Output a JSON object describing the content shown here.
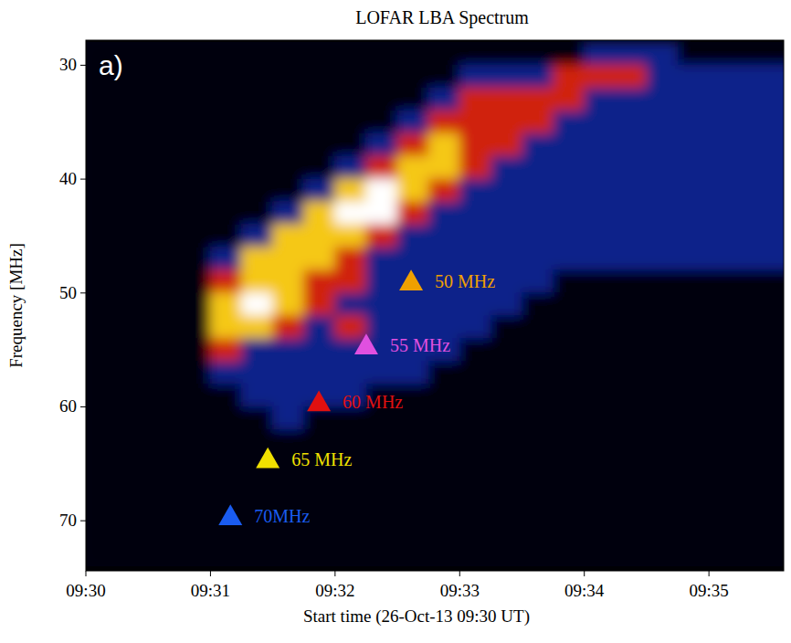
{
  "chart_data": {
    "type": "heatmap",
    "title": "LOFAR LBA Spectrum",
    "panel": "a)",
    "x_label": "Start time (26-Oct-13 09:30 UT)",
    "y_label": "Frequency [MHz]",
    "xlim": [
      0,
      5.6
    ],
    "xticks": [
      {
        "value": 0,
        "label": "09:30"
      },
      {
        "value": 1,
        "label": "09:31"
      },
      {
        "value": 2,
        "label": "09:32"
      },
      {
        "value": 3,
        "label": "09:33"
      },
      {
        "value": 4,
        "label": "09:34"
      },
      {
        "value": 5,
        "label": "09:35"
      }
    ],
    "ylim": [
      74.4,
      27.8
    ],
    "yticks": [
      30,
      40,
      50,
      60,
      70
    ],
    "x_bins": [
      0,
      0.25,
      0.5,
      0.75,
      1,
      1.25,
      1.5,
      1.75,
      2,
      2.25,
      2.5,
      2.75,
      3,
      3.25,
      3.5,
      3.75,
      4,
      4.25,
      4.5,
      4.75,
      5,
      5.25,
      5.5,
      5.75
    ],
    "y_bins": [
      28,
      30,
      32,
      34,
      36,
      38,
      40,
      42,
      44,
      46,
      48,
      50,
      52,
      54,
      56,
      58,
      60,
      62,
      64,
      66,
      68,
      70,
      72,
      74
    ],
    "levels": [
      0,
      1,
      2,
      3,
      4
    ],
    "colors": [
      "#000008",
      "#10208a",
      "#d02010",
      "#f5c818",
      "#ffffff"
    ],
    "cells": [
      [
        0,
        0,
        0,
        0,
        0,
        0,
        0,
        0,
        0,
        0,
        0,
        0,
        0,
        0,
        0,
        0,
        1,
        1,
        1,
        0,
        0,
        0,
        0
      ],
      [
        0,
        0,
        0,
        0,
        0,
        0,
        0,
        0,
        0,
        0,
        0,
        0,
        1,
        1,
        1,
        2,
        2,
        2,
        1,
        1,
        1,
        1,
        1
      ],
      [
        0,
        0,
        0,
        0,
        0,
        0,
        0,
        0,
        0,
        0,
        0,
        1,
        2,
        2,
        2,
        2,
        1,
        1,
        1,
        1,
        1,
        1,
        1
      ],
      [
        0,
        0,
        0,
        0,
        0,
        0,
        0,
        0,
        0,
        0,
        1,
        2,
        2,
        2,
        2,
        1,
        1,
        1,
        1,
        1,
        1,
        1,
        1
      ],
      [
        0,
        0,
        0,
        0,
        0,
        0,
        0,
        0,
        0,
        1,
        2,
        3,
        2,
        2,
        1,
        1,
        1,
        1,
        1,
        1,
        1,
        1,
        1
      ],
      [
        0,
        0,
        0,
        0,
        0,
        0,
        0,
        0,
        1,
        2,
        3,
        3,
        2,
        1,
        1,
        1,
        1,
        1,
        1,
        1,
        1,
        1,
        1
      ],
      [
        0,
        0,
        0,
        0,
        0,
        0,
        0,
        1,
        3,
        4,
        3,
        2,
        1,
        1,
        1,
        1,
        1,
        1,
        1,
        1,
        1,
        1,
        1
      ],
      [
        0,
        0,
        0,
        0,
        0,
        0,
        1,
        3,
        4,
        4,
        2,
        1,
        1,
        1,
        1,
        1,
        1,
        1,
        1,
        1,
        1,
        1,
        1
      ],
      [
        0,
        0,
        0,
        0,
        0,
        1,
        3,
        3,
        3,
        2,
        1,
        1,
        1,
        1,
        1,
        1,
        1,
        1,
        1,
        1,
        1,
        1,
        1
      ],
      [
        0,
        0,
        0,
        0,
        1,
        3,
        3,
        3,
        2,
        1,
        1,
        1,
        1,
        1,
        1,
        1,
        1,
        1,
        1,
        1,
        1,
        1,
        1
      ],
      [
        0,
        0,
        0,
        0,
        2,
        3,
        3,
        2,
        2,
        1,
        1,
        1,
        1,
        1,
        1,
        0,
        0,
        0,
        0,
        0,
        0,
        0,
        0
      ],
      [
        0,
        0,
        0,
        0,
        3,
        4,
        3,
        2,
        1,
        1,
        1,
        1,
        1,
        1,
        0,
        0,
        0,
        0,
        0,
        0,
        0,
        0,
        0
      ],
      [
        0,
        0,
        0,
        0,
        3,
        3,
        2,
        1,
        2,
        1,
        1,
        1,
        1,
        0,
        0,
        0,
        0,
        0,
        0,
        0,
        0,
        0,
        0
      ],
      [
        0,
        0,
        0,
        0,
        2,
        1,
        1,
        1,
        1,
        1,
        1,
        1,
        0,
        0,
        0,
        0,
        0,
        0,
        0,
        0,
        0,
        0,
        0
      ],
      [
        0,
        0,
        0,
        0,
        1,
        1,
        1,
        1,
        1,
        1,
        1,
        0,
        0,
        0,
        0,
        0,
        0,
        0,
        0,
        0,
        0,
        0,
        0
      ],
      [
        0,
        0,
        0,
        0,
        0,
        1,
        1,
        1,
        1,
        0,
        0,
        0,
        0,
        0,
        0,
        0,
        0,
        0,
        0,
        0,
        0,
        0,
        0
      ],
      [
        0,
        0,
        0,
        0,
        0,
        0,
        1,
        0,
        0,
        0,
        0,
        0,
        0,
        0,
        0,
        0,
        0,
        0,
        0,
        0,
        0,
        0,
        0
      ],
      [
        0,
        0,
        0,
        0,
        0,
        0,
        0,
        0,
        0,
        0,
        0,
        0,
        0,
        0,
        0,
        0,
        0,
        0,
        0,
        0,
        0,
        0,
        0
      ],
      [
        0,
        0,
        0,
        0,
        0,
        0,
        0,
        0,
        0,
        0,
        0,
        0,
        0,
        0,
        0,
        0,
        0,
        0,
        0,
        0,
        0,
        0,
        0
      ],
      [
        0,
        0,
        0,
        0,
        0,
        0,
        0,
        0,
        0,
        0,
        0,
        0,
        0,
        0,
        0,
        0,
        0,
        0,
        0,
        0,
        0,
        0,
        0
      ],
      [
        0,
        0,
        0,
        0,
        0,
        0,
        0,
        0,
        0,
        0,
        0,
        0,
        0,
        0,
        0,
        0,
        0,
        0,
        0,
        0,
        0,
        0,
        0
      ],
      [
        0,
        0,
        0,
        0,
        0,
        0,
        0,
        0,
        0,
        0,
        0,
        0,
        0,
        0,
        0,
        0,
        0,
        0,
        0,
        0,
        0,
        0,
        0
      ],
      [
        0,
        0,
        0,
        0,
        0,
        0,
        0,
        0,
        0,
        0,
        0,
        0,
        0,
        0,
        0,
        0,
        0,
        0,
        0,
        0,
        0,
        0,
        0
      ]
    ],
    "annotations": [
      {
        "text": "50 MHz",
        "x": 2.61,
        "y": 49.0,
        "color": "#f0a000",
        "marker": "triangle"
      },
      {
        "text": "55 MHz",
        "x": 2.25,
        "y": 54.6,
        "color": "#e050e0",
        "marker": "triangle"
      },
      {
        "text": "60 MHz",
        "x": 1.87,
        "y": 59.6,
        "color": "#e01010",
        "marker": "triangle"
      },
      {
        "text": "65 MHz",
        "x": 1.46,
        "y": 64.6,
        "color": "#f0e000",
        "marker": "triangle"
      },
      {
        "text": "70MHz",
        "x": 1.16,
        "y": 69.6,
        "color": "#1a5cf0",
        "marker": "triangle"
      }
    ]
  }
}
